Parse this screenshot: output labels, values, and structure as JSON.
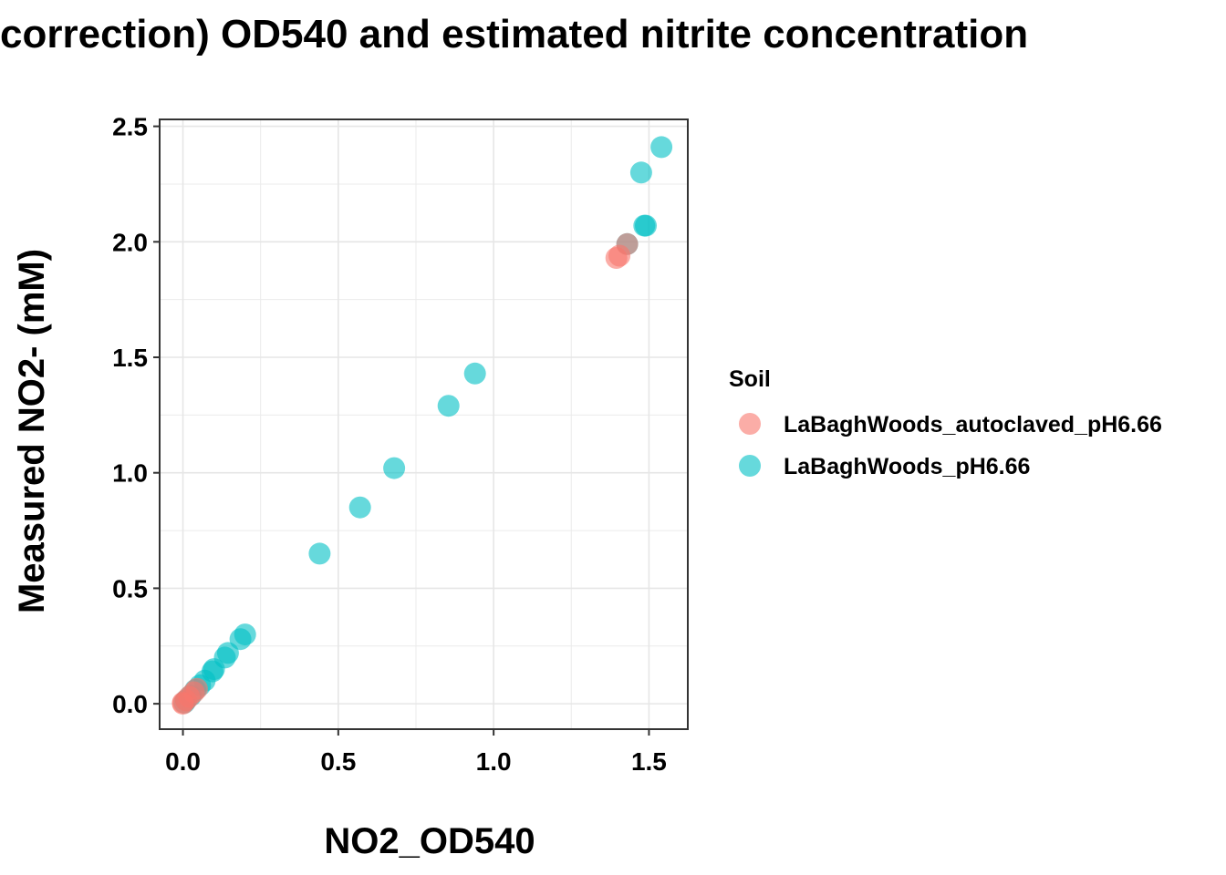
{
  "chart_data": {
    "type": "scatter",
    "title": "correction) OD540 and estimated nitrite concentration",
    "xlabel": "NO2_OD540",
    "ylabel": "Measured NO2- (mM)",
    "xlim": [
      -0.075,
      1.625
    ],
    "ylim": [
      -0.11,
      2.53
    ],
    "x_ticks": [
      0.0,
      0.5,
      1.0,
      1.5
    ],
    "x_tick_labels": [
      "0.0",
      "0.5",
      "1.0",
      "1.5"
    ],
    "y_ticks": [
      0.0,
      0.5,
      1.0,
      1.5,
      2.0,
      2.5
    ],
    "y_tick_labels": [
      "0.0",
      "0.5",
      "1.0",
      "1.5",
      "2.0",
      "2.5"
    ],
    "grid": true,
    "legend": {
      "title": "Soil",
      "placement": "right"
    },
    "series": [
      {
        "name": "LaBaghWoods_pH6.66",
        "color": "#00BFC4",
        "points": [
          {
            "x": 1.54,
            "y": 2.41
          },
          {
            "x": 1.475,
            "y": 2.3
          },
          {
            "x": 1.49,
            "y": 2.07
          },
          {
            "x": 1.485,
            "y": 2.07
          },
          {
            "x": 1.43,
            "y": 1.99
          },
          {
            "x": 0.94,
            "y": 1.43
          },
          {
            "x": 0.855,
            "y": 1.29
          },
          {
            "x": 0.68,
            "y": 1.02
          },
          {
            "x": 0.57,
            "y": 0.85
          },
          {
            "x": 0.44,
            "y": 0.65
          },
          {
            "x": 0.2,
            "y": 0.3
          },
          {
            "x": 0.185,
            "y": 0.28
          },
          {
            "x": 0.145,
            "y": 0.22
          },
          {
            "x": 0.135,
            "y": 0.2
          },
          {
            "x": 0.1,
            "y": 0.15
          },
          {
            "x": 0.095,
            "y": 0.14
          },
          {
            "x": 0.07,
            "y": 0.1
          },
          {
            "x": 0.055,
            "y": 0.08
          },
          {
            "x": 0.04,
            "y": 0.06
          },
          {
            "x": 0.025,
            "y": 0.035
          },
          {
            "x": 0.01,
            "y": 0.015
          },
          {
            "x": 0.005,
            "y": 0.005
          }
        ]
      },
      {
        "name": "LaBaghWoods_autoclaved_pH6.66",
        "color": "#F8766D",
        "points": [
          {
            "x": 1.395,
            "y": 1.93
          },
          {
            "x": 1.405,
            "y": 1.94
          },
          {
            "x": 1.43,
            "y": 1.99
          },
          {
            "x": 0.045,
            "y": 0.065
          },
          {
            "x": 0.035,
            "y": 0.05
          },
          {
            "x": 0.02,
            "y": 0.03
          },
          {
            "x": 0.01,
            "y": 0.015
          },
          {
            "x": 0.0,
            "y": 0.005
          },
          {
            "x": 0.0,
            "y": 0.0
          }
        ]
      }
    ],
    "legend_order": [
      "LaBaghWoods_autoclaved_pH6.66",
      "LaBaghWoods_pH6.66"
    ]
  }
}
